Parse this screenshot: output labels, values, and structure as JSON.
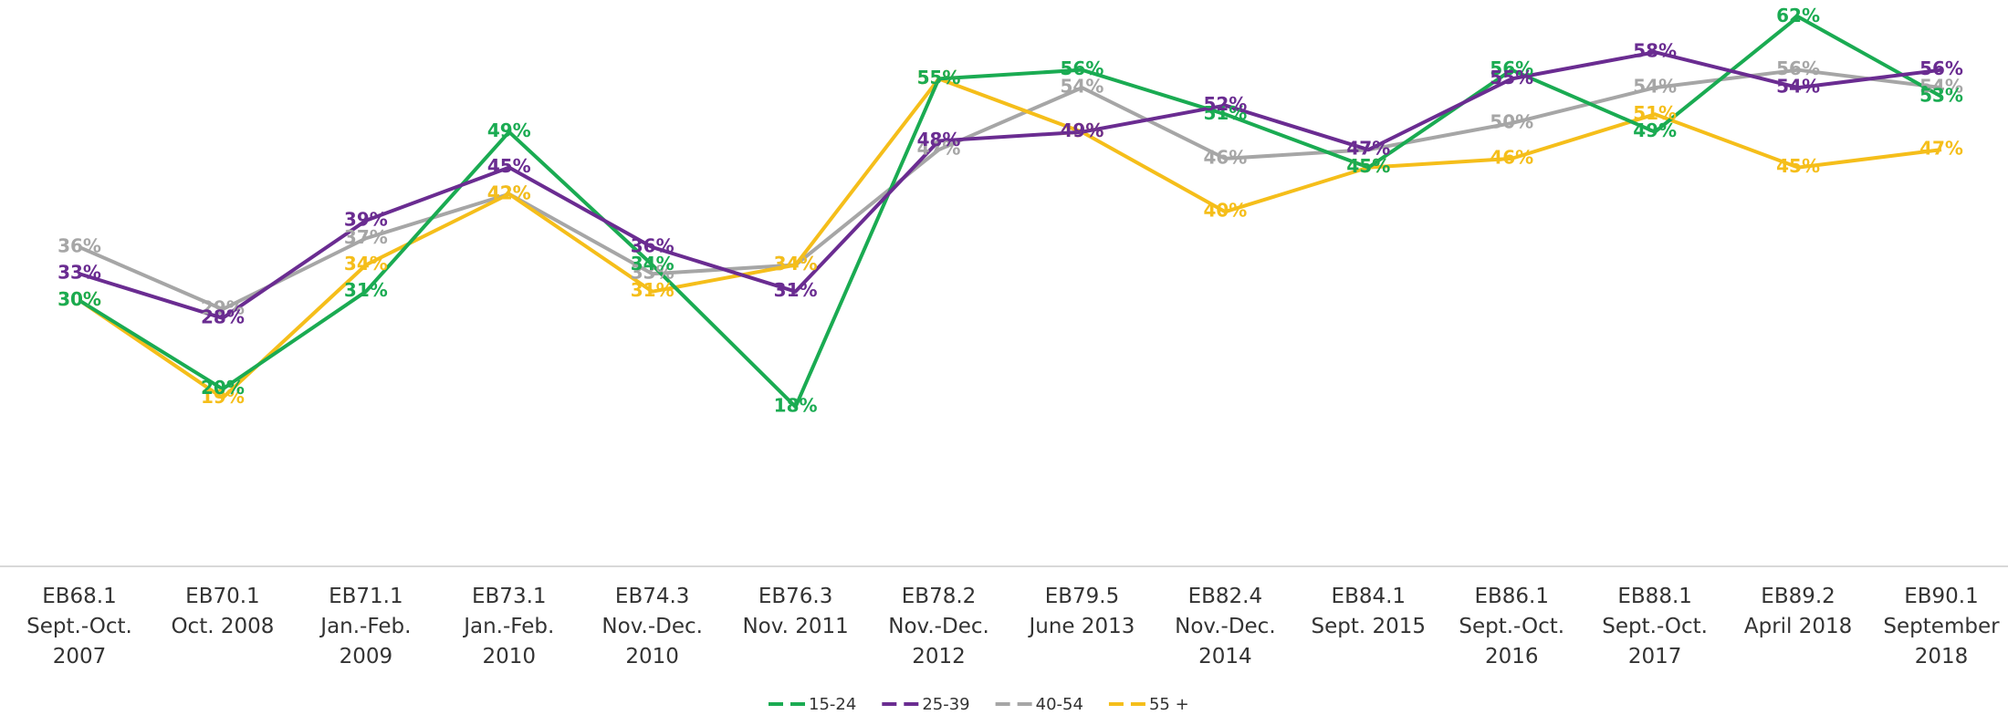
{
  "chart_data": {
    "type": "line",
    "categories": [
      "EB68.1\nSept.-Oct.\n2007",
      "EB70.1\nOct. 2008",
      "EB71.1\nJan.-Feb.\n2009",
      "EB73.1\nJan.-Feb.\n2010",
      "EB74.3\nNov.-Dec.\n2010",
      "EB76.3\nNov. 2011",
      "EB78.2\nNov.-Dec.\n2012",
      "EB79.5\nJune 2013",
      "EB82.4\nNov.-Dec.\n2014",
      "EB84.1\nSept. 2015",
      "EB86.1\nSept.-Oct.\n2016",
      "EB88.1\nSept.-Oct.\n2017",
      "EB89.2\nApril 2018",
      "EB90.1\nSeptember\n2018"
    ],
    "series": [
      {
        "name": "15-24",
        "color": "#1aab52",
        "values": [
          30,
          20,
          31,
          49,
          34,
          18,
          55,
          56,
          51,
          45,
          56,
          49,
          62,
          53
        ],
        "value_labels": [
          "30%",
          "20%",
          "31%",
          "49%",
          "34%",
          "18%",
          "55%",
          "56%",
          "51%",
          "45%",
          "56%",
          "49%",
          "62%",
          "53%"
        ]
      },
      {
        "name": "25-39",
        "color": "#6a2c91",
        "values": [
          33,
          28,
          39,
          45,
          36,
          31,
          48,
          49,
          52,
          47,
          55,
          58,
          54,
          56
        ],
        "value_labels": [
          "33%",
          "28%",
          "39%",
          "45%",
          "36%",
          "31%",
          "48%",
          "49%",
          "52%",
          "47%",
          "55%",
          "58%",
          "54%",
          "56%"
        ]
      },
      {
        "name": "40-54",
        "color": "#a6a6a6",
        "values": [
          36,
          29,
          37,
          42,
          33,
          34,
          47,
          54,
          46,
          47,
          50,
          54,
          56,
          54
        ],
        "value_labels": [
          "36%",
          "29%",
          "37%",
          "42%",
          "33%",
          "34%",
          "47%",
          "54%",
          "46%",
          "47%",
          "50%",
          "54%",
          "56%",
          "54%"
        ]
      },
      {
        "name": "55 +",
        "color": "#f5be1a",
        "values": [
          30,
          19,
          34,
          42,
          31,
          34,
          55,
          49,
          40,
          45,
          46,
          51,
          45,
          47
        ],
        "value_labels": [
          "30%",
          "19%",
          "34%",
          "42%",
          "31%",
          "34%",
          "55%",
          "49%",
          "40%",
          "45%",
          "46%",
          "51%",
          "45%",
          "47%"
        ]
      }
    ],
    "legend": "bottom"
  }
}
